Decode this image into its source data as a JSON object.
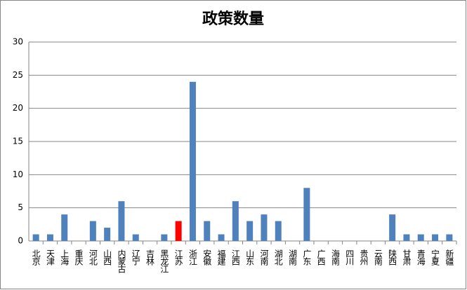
{
  "chart_data": {
    "type": "bar",
    "title": "政策数量",
    "categories": [
      "北京",
      "天津",
      "上海",
      "重庆",
      "河北",
      "山西",
      "内蒙古",
      "辽宁",
      "吉林",
      "黑龙江",
      "江苏",
      "浙江",
      "安徽",
      "福建",
      "江西",
      "山东",
      "河南",
      "湖北",
      "湖南",
      "广东",
      "广西",
      "海南",
      "四川",
      "贵州",
      "云南",
      "陕西",
      "甘肃",
      "青海",
      "宁夏",
      "新疆"
    ],
    "values": [
      1,
      1,
      4,
      0,
      3,
      2,
      6,
      1,
      0,
      1,
      3,
      24,
      3,
      1,
      6,
      3,
      4,
      3,
      0,
      8,
      0,
      0,
      0,
      0,
      0,
      4,
      1,
      1,
      1,
      1
    ],
    "colors": [
      "#4f81bd",
      "#4f81bd",
      "#4f81bd",
      "#4f81bd",
      "#4f81bd",
      "#4f81bd",
      "#4f81bd",
      "#4f81bd",
      "#4f81bd",
      "#4f81bd",
      "#ff0000",
      "#4f81bd",
      "#4f81bd",
      "#4f81bd",
      "#4f81bd",
      "#4f81bd",
      "#4f81bd",
      "#4f81bd",
      "#4f81bd",
      "#4f81bd",
      "#4f81bd",
      "#4f81bd",
      "#4f81bd",
      "#4f81bd",
      "#4f81bd",
      "#4f81bd",
      "#4f81bd",
      "#4f81bd",
      "#4f81bd",
      "#4f81bd"
    ],
    "ylim": [
      0,
      30
    ],
    "yticks": [
      0,
      5,
      10,
      15,
      20,
      25,
      30
    ],
    "grid": true
  }
}
